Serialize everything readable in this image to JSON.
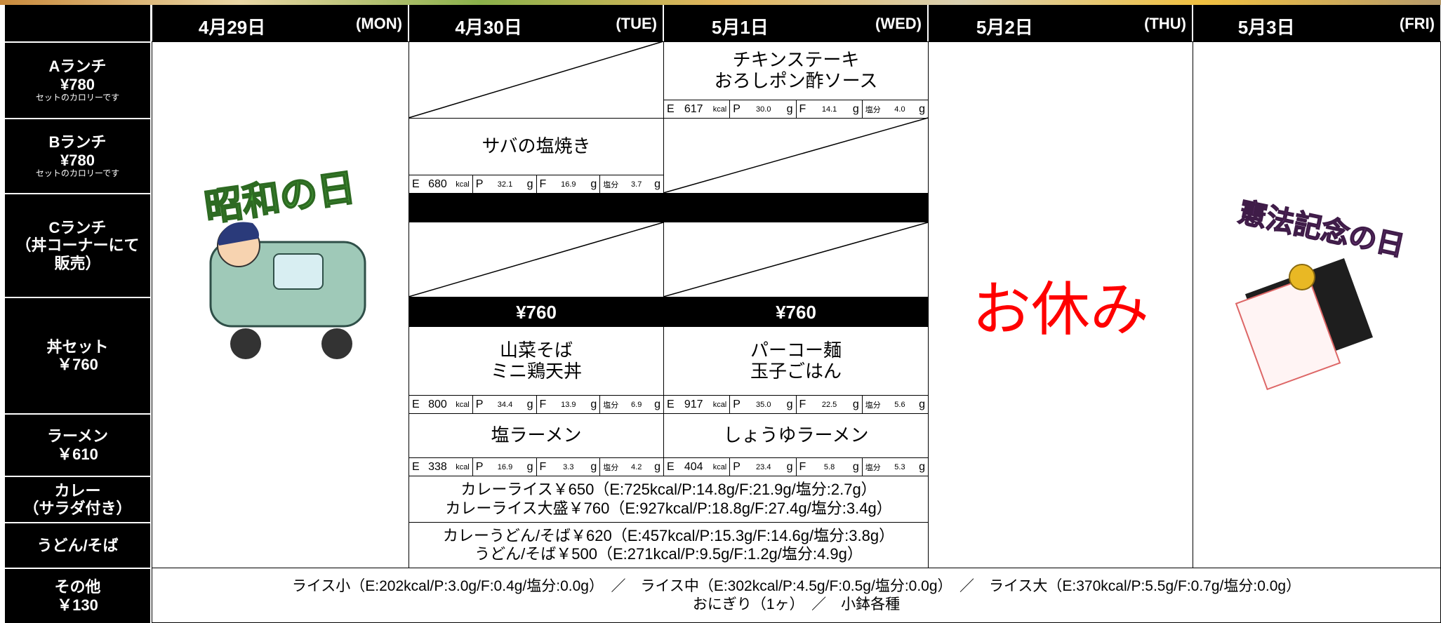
{
  "header": {
    "days": [
      {
        "date": "4月29日",
        "weekday": "(MON)"
      },
      {
        "date": "4月30日",
        "weekday": "(TUE)"
      },
      {
        "date": "5月1日",
        "weekday": "(WED)"
      },
      {
        "date": "5月2日",
        "weekday": "(THU)"
      },
      {
        "date": "5月3日",
        "weekday": "(FRI)"
      }
    ]
  },
  "rows": [
    {
      "lines": [
        "Aランチ",
        "¥780"
      ],
      "note": "セットのカロリーです"
    },
    {
      "lines": [
        "Bランチ",
        "¥780"
      ],
      "note": "セットのカロリーです"
    },
    {
      "lines": [
        "Cランチ",
        "（丼コーナーにて",
        "販売）"
      ]
    },
    {
      "lines": [
        "丼セット",
        "￥760"
      ]
    },
    {
      "lines": [
        "ラーメン",
        "￥610"
      ]
    },
    {
      "lines": [
        "カレー",
        "（サラダ付き）"
      ]
    },
    {
      "lines": [
        "うどん/そば"
      ]
    },
    {
      "lines": [
        "その他",
        "￥130"
      ]
    }
  ],
  "nutrition_labels": {
    "e": "E",
    "kcal": "kcal",
    "p": "P",
    "f": "F",
    "salt": "塩分",
    "g": "g"
  },
  "menu": {
    "a_wed": {
      "name": [
        "チキンステーキ",
        "おろしポン酢ソース"
      ],
      "nutrition": [
        "617",
        "30.0",
        "14.1",
        "4.0"
      ]
    },
    "b_tue": {
      "name": [
        "サバの塩焼き"
      ],
      "nutrition": [
        "680",
        "32.1",
        "16.9",
        "3.7"
      ]
    },
    "don_tue": {
      "price": "¥760",
      "name": [
        "山菜そば",
        "ミニ鶏天丼"
      ],
      "nutrition": [
        "800",
        "34.4",
        "13.9",
        "6.9"
      ]
    },
    "don_wed": {
      "price": "¥760",
      "name": [
        "パーコー麺",
        "玉子ごはん"
      ],
      "nutrition": [
        "917",
        "35.0",
        "22.5",
        "5.6"
      ]
    },
    "ramen_tue": {
      "name": [
        "塩ラーメン"
      ],
      "nutrition": [
        "338",
        "16.9",
        "3.3",
        "4.2"
      ]
    },
    "ramen_wed": {
      "name": [
        "しょうゆラーメン"
      ],
      "nutrition": [
        "404",
        "23.4",
        "5.8",
        "5.3"
      ]
    }
  },
  "curry": [
    "カレーライス￥650（E:725kcal/P:14.8g/F:21.9g/塩分:2.7g）",
    "カレーライス大盛￥760（E:927kcal/P:18.8g/F:27.4g/塩分:3.4g）"
  ],
  "udon": [
    "カレーうどん/そば￥620（E:457kcal/P:15.3g/F:14.6g/塩分:3.8g）",
    "うどん/そば￥500（E:271kcal/P:9.5g/F:1.2g/塩分:4.9g）"
  ],
  "other": [
    "ライス小（E:202kcal/P:3.0g/F:0.4g/塩分:0.0g）　／　ライス中（E:302kcal/P:4.5g/F:0.5g/塩分:0.0g）　／　ライス大（E:370kcal/P:5.5g/F:0.7g/塩分:0.0g）",
    "おにぎり（1ヶ）　／　小鉢各種"
  ],
  "holiday": {
    "mon": "昭和の日",
    "thu": "お休み",
    "fri": "憲法記念の日"
  }
}
